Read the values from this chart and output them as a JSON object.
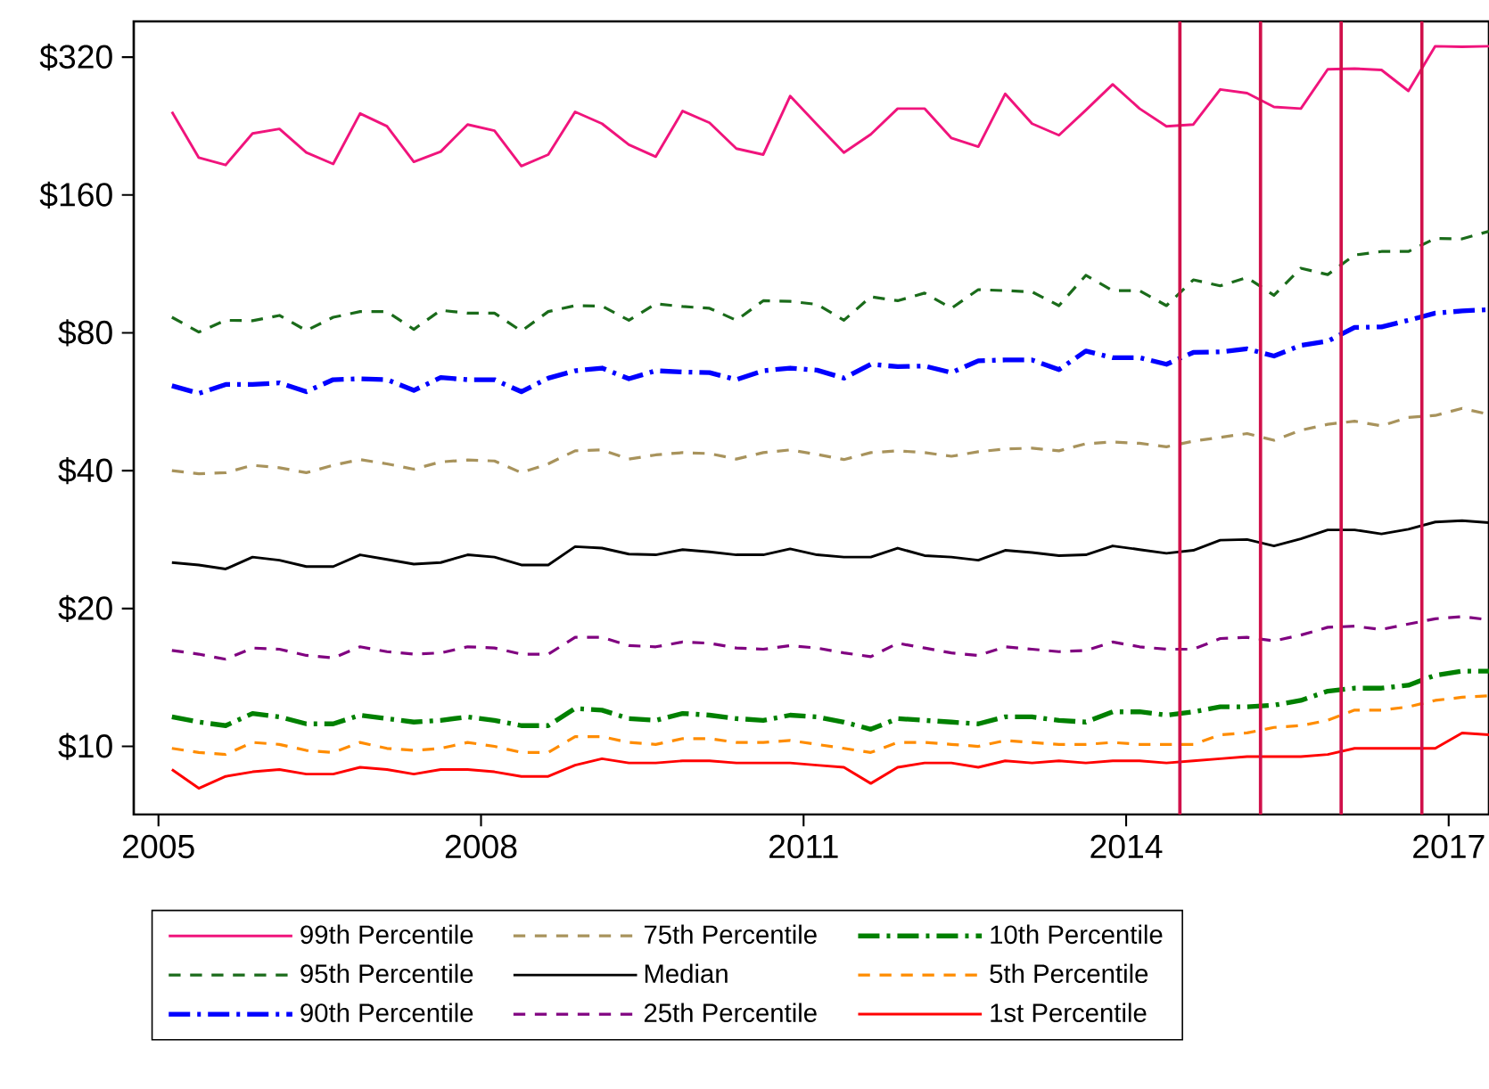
{
  "chart_data": {
    "type": "line",
    "log": "y",
    "x": [
      2005.125,
      2005.375,
      2005.625,
      2005.875,
      2006.125,
      2006.375,
      2006.625,
      2006.875,
      2007.125,
      2007.375,
      2007.625,
      2007.875,
      2008.125,
      2008.375,
      2008.625,
      2008.875,
      2009.125,
      2009.375,
      2009.625,
      2009.875,
      2010.125,
      2010.375,
      2010.625,
      2010.875,
      2011.125,
      2011.375,
      2011.625,
      2011.875,
      2012.125,
      2012.375,
      2012.625,
      2012.875,
      2013.125,
      2013.375,
      2013.625,
      2013.875,
      2014.125,
      2014.375,
      2014.625,
      2014.875,
      2015.125,
      2015.375,
      2015.625,
      2015.875,
      2016.125,
      2016.375,
      2016.625,
      2016.875,
      2017.125,
      2017.375
    ],
    "xlim": [
      2004.77,
      2017.375
    ],
    "xticks": [
      2005,
      2008,
      2011,
      2014,
      2017
    ],
    "ylim": [
      7.1,
      383
    ],
    "yticks": [
      {
        "value": 10,
        "label": "$10"
      },
      {
        "value": 20,
        "label": "$20"
      },
      {
        "value": 40,
        "label": "$40"
      },
      {
        "value": 80,
        "label": "$80"
      },
      {
        "value": 160,
        "label": "$160"
      },
      {
        "value": 320,
        "label": "$320"
      }
    ],
    "legend": "bottom",
    "ref_lines": [
      {
        "axis": "x",
        "value": 2014.5,
        "color": "#d0104a"
      },
      {
        "axis": "x",
        "value": 2015.25,
        "color": "#d0104a"
      },
      {
        "axis": "x",
        "value": 2016.0,
        "color": "#d0104a"
      },
      {
        "axis": "x",
        "value": 2016.75,
        "color": "#d0104a"
      }
    ],
    "series": [
      {
        "name": "99th Percentile",
        "color": "#f0147c",
        "line_style": "solid",
        "values": [
          243,
          193,
          186,
          218,
          223,
          198,
          187,
          241,
          226,
          189,
          199,
          228,
          221,
          185,
          196,
          243,
          229,
          206,
          194,
          244,
          230,
          202,
          196,
          263,
          228,
          198,
          217,
          247,
          247,
          213,
          204,
          266,
          229,
          216,
          245,
          279,
          247,
          226,
          228,
          272,
          267,
          249,
          247,
          301,
          302,
          300,
          270,
          338,
          337,
          338
        ]
      },
      {
        "name": "95th Percentile",
        "color": "#1a6b1a",
        "line_style": "dashed",
        "values": [
          86.5,
          80.3,
          85.2,
          85.0,
          87.3,
          80.9,
          86.5,
          89.0,
          89.0,
          81.4,
          89.6,
          88.3,
          88.3,
          80.7,
          89.0,
          91.7,
          91.5,
          85.2,
          92.6,
          91.3,
          90.5,
          85.2,
          94.0,
          93.7,
          92.3,
          85.2,
          95.9,
          94.0,
          97.7,
          90.5,
          99.4,
          98.9,
          98.3,
          91.7,
          106.8,
          98.9,
          98.9,
          91.7,
          104.4,
          101.3,
          105.6,
          96.6,
          110.7,
          107.2,
          118.3,
          120.4,
          120.4,
          128.6,
          128.3,
          133.3
        ]
      },
      {
        "name": "90th Percentile",
        "color": "#0000ff",
        "line_style": "dashdot",
        "values": [
          61.3,
          59.0,
          61.7,
          61.7,
          62.2,
          59.5,
          63.2,
          63.5,
          63.2,
          59.9,
          63.9,
          63.2,
          63.2,
          59.5,
          63.7,
          66.1,
          67.0,
          63.5,
          66.1,
          65.7,
          65.5,
          63.2,
          66.1,
          67.0,
          66.3,
          63.7,
          68.3,
          67.5,
          67.7,
          65.5,
          69.5,
          69.8,
          69.8,
          66.5,
          73.0,
          70.6,
          70.6,
          68.3,
          72.5,
          72.7,
          73.8,
          71.2,
          75.1,
          76.7,
          82.2,
          82.4,
          85.2,
          88.3,
          89.3,
          89.9
        ]
      },
      {
        "name": "75th Percentile",
        "color": "#a8935c",
        "line_style": "dashed",
        "values": [
          40.0,
          39.4,
          39.6,
          41.1,
          40.6,
          39.6,
          41.1,
          42.3,
          41.4,
          40.3,
          41.8,
          42.2,
          42.0,
          39.6,
          41.4,
          44.2,
          44.4,
          42.4,
          43.3,
          43.8,
          43.6,
          42.4,
          43.8,
          44.4,
          43.4,
          42.3,
          43.8,
          44.2,
          43.8,
          43.0,
          44.0,
          44.6,
          44.8,
          44.2,
          45.8,
          46.2,
          45.9,
          45.1,
          46.4,
          47.3,
          48.2,
          46.6,
          49.0,
          50.5,
          51.3,
          50.1,
          52.3,
          52.8,
          54.7,
          53.1
        ]
      },
      {
        "name": "Median",
        "color": "#000000",
        "line_style": "solid",
        "values": [
          25.2,
          24.9,
          24.4,
          25.9,
          25.5,
          24.7,
          24.7,
          26.2,
          25.6,
          25.0,
          25.2,
          26.2,
          25.9,
          24.9,
          24.9,
          27.3,
          27.1,
          26.3,
          26.2,
          26.9,
          26.6,
          26.2,
          26.2,
          27.0,
          26.2,
          25.9,
          25.9,
          27.1,
          26.1,
          25.9,
          25.5,
          26.8,
          26.5,
          26.1,
          26.2,
          27.4,
          26.9,
          26.4,
          26.8,
          28.2,
          28.3,
          27.4,
          28.4,
          29.7,
          29.7,
          29.1,
          29.8,
          30.9,
          31.1,
          30.8
        ]
      },
      {
        "name": "25th Percentile",
        "color": "#800080",
        "line_style": "dashed",
        "values": [
          16.2,
          15.9,
          15.5,
          16.4,
          16.3,
          15.8,
          15.6,
          16.5,
          16.1,
          15.9,
          16.0,
          16.5,
          16.4,
          15.9,
          15.9,
          17.3,
          17.3,
          16.6,
          16.5,
          16.9,
          16.8,
          16.4,
          16.3,
          16.6,
          16.4,
          16.0,
          15.7,
          16.8,
          16.4,
          16.0,
          15.8,
          16.5,
          16.3,
          16.1,
          16.2,
          16.9,
          16.5,
          16.3,
          16.3,
          17.2,
          17.3,
          17.0,
          17.5,
          18.2,
          18.3,
          18.0,
          18.5,
          19.0,
          19.2,
          18.9
        ]
      },
      {
        "name": "10th Percentile",
        "color": "#008000",
        "line_style": "dashdot",
        "values": [
          11.6,
          11.3,
          11.1,
          11.8,
          11.6,
          11.2,
          11.2,
          11.7,
          11.5,
          11.3,
          11.4,
          11.6,
          11.4,
          11.1,
          11.1,
          12.1,
          12.0,
          11.5,
          11.4,
          11.8,
          11.7,
          11.5,
          11.4,
          11.7,
          11.6,
          11.3,
          10.9,
          11.5,
          11.4,
          11.3,
          11.2,
          11.6,
          11.6,
          11.4,
          11.3,
          11.9,
          11.9,
          11.7,
          11.9,
          12.2,
          12.2,
          12.3,
          12.6,
          13.2,
          13.4,
          13.4,
          13.6,
          14.3,
          14.6,
          14.6
        ]
      },
      {
        "name": "5th Percentile",
        "color": "#ff8c00",
        "line_style": "dashed",
        "values": [
          9.9,
          9.7,
          9.6,
          10.2,
          10.1,
          9.8,
          9.7,
          10.2,
          9.9,
          9.8,
          9.9,
          10.2,
          10.0,
          9.7,
          9.7,
          10.5,
          10.5,
          10.2,
          10.1,
          10.4,
          10.4,
          10.2,
          10.2,
          10.3,
          10.1,
          9.9,
          9.7,
          10.2,
          10.2,
          10.1,
          10.0,
          10.3,
          10.2,
          10.1,
          10.1,
          10.2,
          10.1,
          10.1,
          10.1,
          10.6,
          10.7,
          11.0,
          11.1,
          11.4,
          12.0,
          12.0,
          12.2,
          12.6,
          12.8,
          12.9
        ]
      },
      {
        "name": "1st Percentile",
        "color": "#ff0000",
        "line_style": "solid",
        "values": [
          8.9,
          8.1,
          8.6,
          8.8,
          8.9,
          8.7,
          8.7,
          9.0,
          8.9,
          8.7,
          8.9,
          8.9,
          8.8,
          8.6,
          8.6,
          9.1,
          9.4,
          9.2,
          9.2,
          9.3,
          9.3,
          9.2,
          9.2,
          9.2,
          9.1,
          9.0,
          8.3,
          9.0,
          9.2,
          9.2,
          9.0,
          9.3,
          9.2,
          9.3,
          9.2,
          9.3,
          9.3,
          9.2,
          9.3,
          9.4,
          9.5,
          9.5,
          9.5,
          9.6,
          9.9,
          9.9,
          9.9,
          9.9,
          10.7,
          10.6
        ]
      }
    ]
  }
}
